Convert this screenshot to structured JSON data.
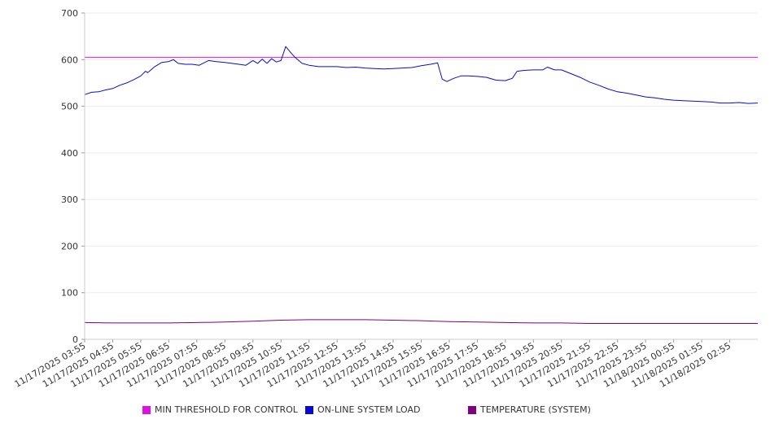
{
  "chart_data": {
    "type": "line",
    "title": "",
    "xlabel": "",
    "ylabel": "",
    "ylim": [
      0,
      700
    ],
    "yticks": [
      0,
      100,
      200,
      300,
      400,
      500,
      600,
      700
    ],
    "grid": true,
    "legend_position": "bottom",
    "x_tick_labels": [
      "11/17/2025 03:55",
      "11/17/2025 04:55",
      "11/17/2025 05:55",
      "11/17/2025 06:55",
      "11/17/2025 07:55",
      "11/17/2025 08:55",
      "11/17/2025 09:55",
      "11/17/2025 10:55",
      "11/17/2025 11:55",
      "11/17/2025 12:55",
      "11/17/2025 13:55",
      "11/17/2025 14:55",
      "11/17/2025 15:55",
      "11/17/2025 16:55",
      "11/17/2025 17:55",
      "11/17/2025 18:55",
      "11/17/2025 19:55",
      "11/17/2025 20:55",
      "11/17/2025 21:55",
      "11/17/2025 22:55",
      "11/17/2025 23:55",
      "11/18/2025 00:55",
      "11/18/2025 01:55",
      "11/18/2025 02:55"
    ],
    "x_start": "11/17/2025 03:55",
    "x_end": "11/18/2025 03:55",
    "series": [
      {
        "name": "MIN THRESHOLD FOR CONTROL",
        "color": "#e010e0",
        "points": [
          [
            "11/17/2025 03:55",
            605
          ],
          [
            "11/18/2025 03:55",
            605
          ]
        ]
      },
      {
        "name": "ON-LINE SYSTEM LOAD",
        "color": "#0a0ad8",
        "points": [
          [
            "11/17/2025 03:55",
            525
          ],
          [
            "11/17/2025 04:10",
            530
          ],
          [
            "11/17/2025 04:25",
            531
          ],
          [
            "11/17/2025 04:40",
            535
          ],
          [
            "11/17/2025 04:55",
            538
          ],
          [
            "11/17/2025 05:10",
            545
          ],
          [
            "11/17/2025 05:25",
            550
          ],
          [
            "11/17/2025 05:40",
            557
          ],
          [
            "11/17/2025 05:55",
            565
          ],
          [
            "11/17/2025 06:05",
            575
          ],
          [
            "11/17/2025 06:10",
            572
          ],
          [
            "11/17/2025 06:25",
            585
          ],
          [
            "11/17/2025 06:40",
            594
          ],
          [
            "11/17/2025 06:55",
            596
          ],
          [
            "11/17/2025 07:05",
            600
          ],
          [
            "11/17/2025 07:15",
            592
          ],
          [
            "11/17/2025 07:30",
            590
          ],
          [
            "11/17/2025 07:45",
            590
          ],
          [
            "11/17/2025 08:00",
            588
          ],
          [
            "11/17/2025 08:10",
            593
          ],
          [
            "11/17/2025 08:20",
            598
          ],
          [
            "11/17/2025 08:35",
            596
          ],
          [
            "11/17/2025 08:55",
            594
          ],
          [
            "11/17/2025 09:10",
            592
          ],
          [
            "11/17/2025 09:25",
            590
          ],
          [
            "11/17/2025 09:40",
            588
          ],
          [
            "11/17/2025 09:55",
            598
          ],
          [
            "11/17/2025 10:05",
            592
          ],
          [
            "11/17/2025 10:15",
            601
          ],
          [
            "11/17/2025 10:25",
            592
          ],
          [
            "11/17/2025 10:35",
            602
          ],
          [
            "11/17/2025 10:45",
            595
          ],
          [
            "11/17/2025 10:55",
            598
          ],
          [
            "11/17/2025 11:05",
            628
          ],
          [
            "11/17/2025 11:15",
            616
          ],
          [
            "11/17/2025 11:25",
            605
          ],
          [
            "11/17/2025 11:40",
            592
          ],
          [
            "11/17/2025 11:55",
            588
          ],
          [
            "11/17/2025 12:15",
            585
          ],
          [
            "11/17/2025 12:35",
            585
          ],
          [
            "11/17/2025 12:55",
            585
          ],
          [
            "11/17/2025 13:15",
            583
          ],
          [
            "11/17/2025 13:35",
            584
          ],
          [
            "11/17/2025 13:55",
            582
          ],
          [
            "11/17/2025 14:15",
            581
          ],
          [
            "11/17/2025 14:35",
            580
          ],
          [
            "11/17/2025 14:55",
            581
          ],
          [
            "11/17/2025 15:15",
            582
          ],
          [
            "11/17/2025 15:35",
            583
          ],
          [
            "11/17/2025 15:55",
            587
          ],
          [
            "11/17/2025 16:15",
            590
          ],
          [
            "11/17/2025 16:30",
            593
          ],
          [
            "11/17/2025 16:40",
            558
          ],
          [
            "11/17/2025 16:50",
            553
          ],
          [
            "11/17/2025 17:05",
            560
          ],
          [
            "11/17/2025 17:20",
            565
          ],
          [
            "11/17/2025 17:35",
            565
          ],
          [
            "11/17/2025 17:55",
            564
          ],
          [
            "11/17/2025 18:15",
            562
          ],
          [
            "11/17/2025 18:35",
            556
          ],
          [
            "11/17/2025 18:55",
            555
          ],
          [
            "11/17/2025 19:10",
            560
          ],
          [
            "11/17/2025 19:20",
            575
          ],
          [
            "11/17/2025 19:35",
            577
          ],
          [
            "11/17/2025 19:55",
            578
          ],
          [
            "11/17/2025 20:15",
            578
          ],
          [
            "11/17/2025 20:25",
            584
          ],
          [
            "11/17/2025 20:40",
            578
          ],
          [
            "11/17/2025 20:55",
            578
          ],
          [
            "11/17/2025 21:15",
            570
          ],
          [
            "11/17/2025 21:35",
            562
          ],
          [
            "11/17/2025 21:55",
            552
          ],
          [
            "11/17/2025 22:15",
            545
          ],
          [
            "11/17/2025 22:35",
            537
          ],
          [
            "11/17/2025 22:55",
            531
          ],
          [
            "11/17/2025 23:15",
            528
          ],
          [
            "11/17/2025 23:35",
            524
          ],
          [
            "11/17/2025 23:55",
            520
          ],
          [
            "11/18/2025 00:15",
            518
          ],
          [
            "11/18/2025 00:35",
            515
          ],
          [
            "11/18/2025 00:55",
            513
          ],
          [
            "11/18/2025 01:15",
            512
          ],
          [
            "11/18/2025 01:35",
            511
          ],
          [
            "11/18/2025 01:55",
            510
          ],
          [
            "11/18/2025 02:15",
            509
          ],
          [
            "11/18/2025 02:35",
            507
          ],
          [
            "11/18/2025 02:55",
            507
          ],
          [
            "11/18/2025 03:15",
            508
          ],
          [
            "11/18/2025 03:35",
            506
          ],
          [
            "11/18/2025 03:55",
            507
          ]
        ]
      },
      {
        "name": "TEMPERATURE (SYSTEM)",
        "color": "#800080",
        "points": [
          [
            "11/17/2025 03:55",
            36
          ],
          [
            "11/17/2025 04:55",
            35
          ],
          [
            "11/17/2025 05:55",
            35
          ],
          [
            "11/17/2025 06:55",
            35
          ],
          [
            "11/17/2025 07:55",
            36
          ],
          [
            "11/17/2025 08:55",
            37
          ],
          [
            "11/17/2025 09:55",
            39
          ],
          [
            "11/17/2025 10:55",
            41
          ],
          [
            "11/17/2025 11:55",
            42
          ],
          [
            "11/17/2025 12:55",
            42
          ],
          [
            "11/17/2025 13:55",
            42
          ],
          [
            "11/17/2025 14:55",
            41
          ],
          [
            "11/17/2025 15:55",
            40
          ],
          [
            "11/17/2025 16:55",
            38
          ],
          [
            "11/17/2025 17:55",
            37
          ],
          [
            "11/17/2025 18:55",
            36
          ],
          [
            "11/17/2025 19:55",
            35
          ],
          [
            "11/17/2025 20:55",
            35
          ],
          [
            "11/17/2025 21:55",
            34
          ],
          [
            "11/17/2025 22:55",
            34
          ],
          [
            "11/17/2025 23:55",
            34
          ],
          [
            "11/18/2025 00:55",
            34
          ],
          [
            "11/18/2025 01:55",
            34
          ],
          [
            "11/18/2025 02:55",
            34
          ],
          [
            "11/18/2025 03:55",
            34
          ]
        ]
      }
    ]
  }
}
